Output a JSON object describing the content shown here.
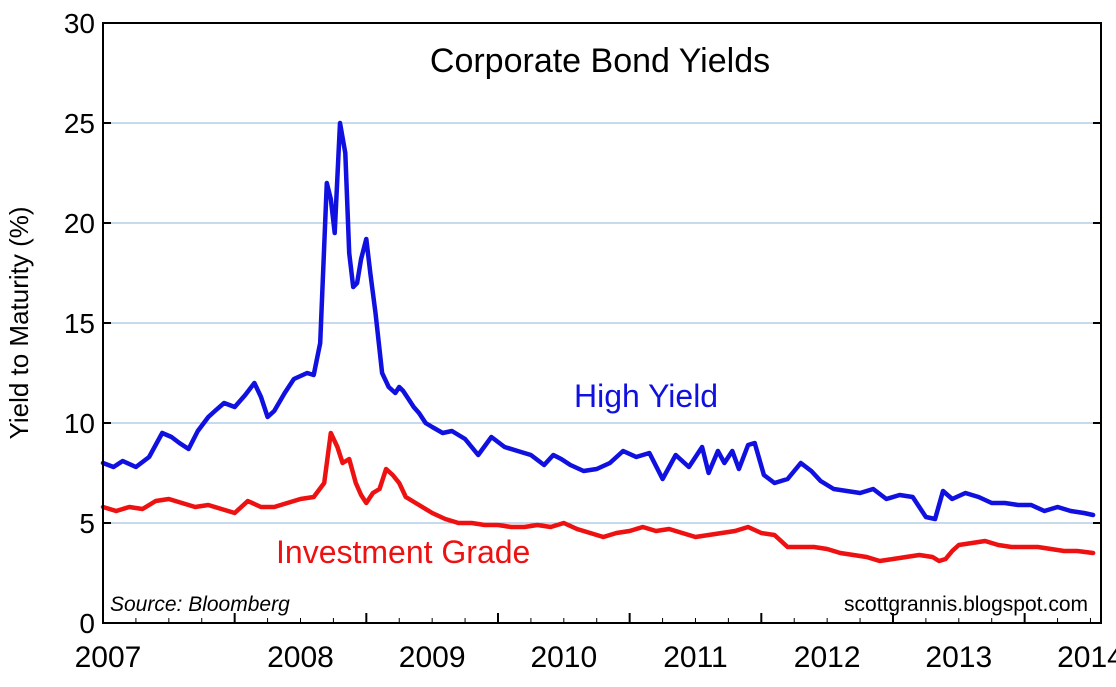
{
  "chart_data": {
    "type": "line",
    "title": "Corporate Bond Yields",
    "ylabel": "Yield to Maturity (%)",
    "xlabel": "",
    "source": "Source: Bloomberg",
    "credit": "scottgrannis.blogspot.com",
    "ylim": [
      0,
      30
    ],
    "xlim": [
      2007.0,
      2014.58
    ],
    "y_ticks": [
      "0",
      "5",
      "10",
      "15",
      "20",
      "25",
      "30"
    ],
    "x_ticks": [
      "2007",
      "2008",
      "2009",
      "2010",
      "2011",
      "2012",
      "2013",
      "2014"
    ],
    "grid": "horizontal",
    "series": [
      {
        "name": "High Yield",
        "color": "#1010e0",
        "x": [
          2007.0,
          2007.08,
          2007.15,
          2007.25,
          2007.35,
          2007.45,
          2007.52,
          2007.58,
          2007.65,
          2007.72,
          2007.8,
          2007.85,
          2007.92,
          2008.0,
          2008.08,
          2008.15,
          2008.2,
          2008.25,
          2008.3,
          2008.38,
          2008.45,
          2008.55,
          2008.6,
          2008.65,
          2008.7,
          2008.73,
          2008.76,
          2008.8,
          2008.84,
          2008.87,
          2008.9,
          2008.93,
          2008.96,
          2009.0,
          2009.03,
          2009.07,
          2009.12,
          2009.17,
          2009.22,
          2009.25,
          2009.28,
          2009.32,
          2009.36,
          2009.4,
          2009.45,
          2009.5,
          2009.58,
          2009.65,
          2009.75,
          2009.85,
          2009.95,
          2010.05,
          2010.15,
          2010.25,
          2010.35,
          2010.42,
          2010.48,
          2010.55,
          2010.65,
          2010.75,
          2010.85,
          2010.95,
          2011.05,
          2011.15,
          2011.25,
          2011.35,
          2011.45,
          2011.55,
          2011.6,
          2011.67,
          2011.72,
          2011.78,
          2011.83,
          2011.9,
          2011.95,
          2012.02,
          2012.1,
          2012.2,
          2012.3,
          2012.38,
          2012.45,
          2012.55,
          2012.65,
          2012.75,
          2012.85,
          2012.95,
          2013.05,
          2013.15,
          2013.25,
          2013.32,
          2013.38,
          2013.45,
          2013.55,
          2013.65,
          2013.75,
          2013.85,
          2013.95,
          2014.05,
          2014.15,
          2014.25,
          2014.35,
          2014.45,
          2014.52
        ],
        "values": [
          8.0,
          7.8,
          8.1,
          7.8,
          8.3,
          9.5,
          9.3,
          9.0,
          8.7,
          9.6,
          10.3,
          10.6,
          11.0,
          10.8,
          11.4,
          12.0,
          11.3,
          10.3,
          10.6,
          11.5,
          12.2,
          12.5,
          12.4,
          14.0,
          22.0,
          21.2,
          19.5,
          25.0,
          23.5,
          18.5,
          16.8,
          17.0,
          18.2,
          19.2,
          17.5,
          15.5,
          12.5,
          11.8,
          11.5,
          11.8,
          11.6,
          11.2,
          10.8,
          10.5,
          10.0,
          9.8,
          9.5,
          9.6,
          9.2,
          8.4,
          9.3,
          8.8,
          8.6,
          8.4,
          7.9,
          8.4,
          8.2,
          7.9,
          7.6,
          7.7,
          8.0,
          8.6,
          8.3,
          8.5,
          7.2,
          8.4,
          7.8,
          8.8,
          7.5,
          8.6,
          8.0,
          8.6,
          7.7,
          8.9,
          9.0,
          7.4,
          7.0,
          7.2,
          8.0,
          7.6,
          7.1,
          6.7,
          6.6,
          6.5,
          6.7,
          6.2,
          6.4,
          6.3,
          5.3,
          5.2,
          6.6,
          6.2,
          6.5,
          6.3,
          6.0,
          6.0,
          5.9,
          5.9,
          5.6,
          5.8,
          5.6,
          5.5,
          5.4
        ]
      },
      {
        "name": "Investment Grade",
        "color": "#ee1111",
        "x": [
          2007.0,
          2007.1,
          2007.2,
          2007.3,
          2007.4,
          2007.5,
          2007.6,
          2007.7,
          2007.8,
          2007.9,
          2008.0,
          2008.1,
          2008.2,
          2008.3,
          2008.4,
          2008.5,
          2008.6,
          2008.68,
          2008.73,
          2008.78,
          2008.82,
          2008.87,
          2008.92,
          2008.96,
          2009.0,
          2009.05,
          2009.1,
          2009.15,
          2009.2,
          2009.25,
          2009.3,
          2009.4,
          2009.5,
          2009.6,
          2009.7,
          2009.8,
          2009.9,
          2010.0,
          2010.1,
          2010.2,
          2010.3,
          2010.4,
          2010.5,
          2010.6,
          2010.7,
          2010.8,
          2010.9,
          2011.0,
          2011.1,
          2011.2,
          2011.3,
          2011.4,
          2011.5,
          2011.6,
          2011.7,
          2011.8,
          2011.9,
          2012.0,
          2012.1,
          2012.2,
          2012.3,
          2012.4,
          2012.5,
          2012.6,
          2012.7,
          2012.8,
          2012.9,
          2013.0,
          2013.1,
          2013.2,
          2013.3,
          2013.35,
          2013.4,
          2013.45,
          2013.5,
          2013.6,
          2013.7,
          2013.8,
          2013.9,
          2014.0,
          2014.1,
          2014.2,
          2014.3,
          2014.4,
          2014.52
        ],
        "values": [
          5.8,
          5.6,
          5.8,
          5.7,
          6.1,
          6.2,
          6.0,
          5.8,
          5.9,
          5.7,
          5.5,
          6.1,
          5.8,
          5.8,
          6.0,
          6.2,
          6.3,
          7.0,
          9.5,
          8.8,
          8.0,
          8.2,
          7.0,
          6.4,
          6.0,
          6.5,
          6.7,
          7.7,
          7.4,
          7.0,
          6.3,
          5.9,
          5.5,
          5.2,
          5.0,
          5.0,
          4.9,
          4.9,
          4.8,
          4.8,
          4.9,
          4.8,
          5.0,
          4.7,
          4.5,
          4.3,
          4.5,
          4.6,
          4.8,
          4.6,
          4.7,
          4.5,
          4.3,
          4.4,
          4.5,
          4.6,
          4.8,
          4.5,
          4.4,
          3.8,
          3.8,
          3.8,
          3.7,
          3.5,
          3.4,
          3.3,
          3.1,
          3.2,
          3.3,
          3.4,
          3.3,
          3.1,
          3.2,
          3.6,
          3.9,
          4.0,
          4.1,
          3.9,
          3.8,
          3.8,
          3.8,
          3.7,
          3.6,
          3.6,
          3.5
        ]
      }
    ]
  }
}
